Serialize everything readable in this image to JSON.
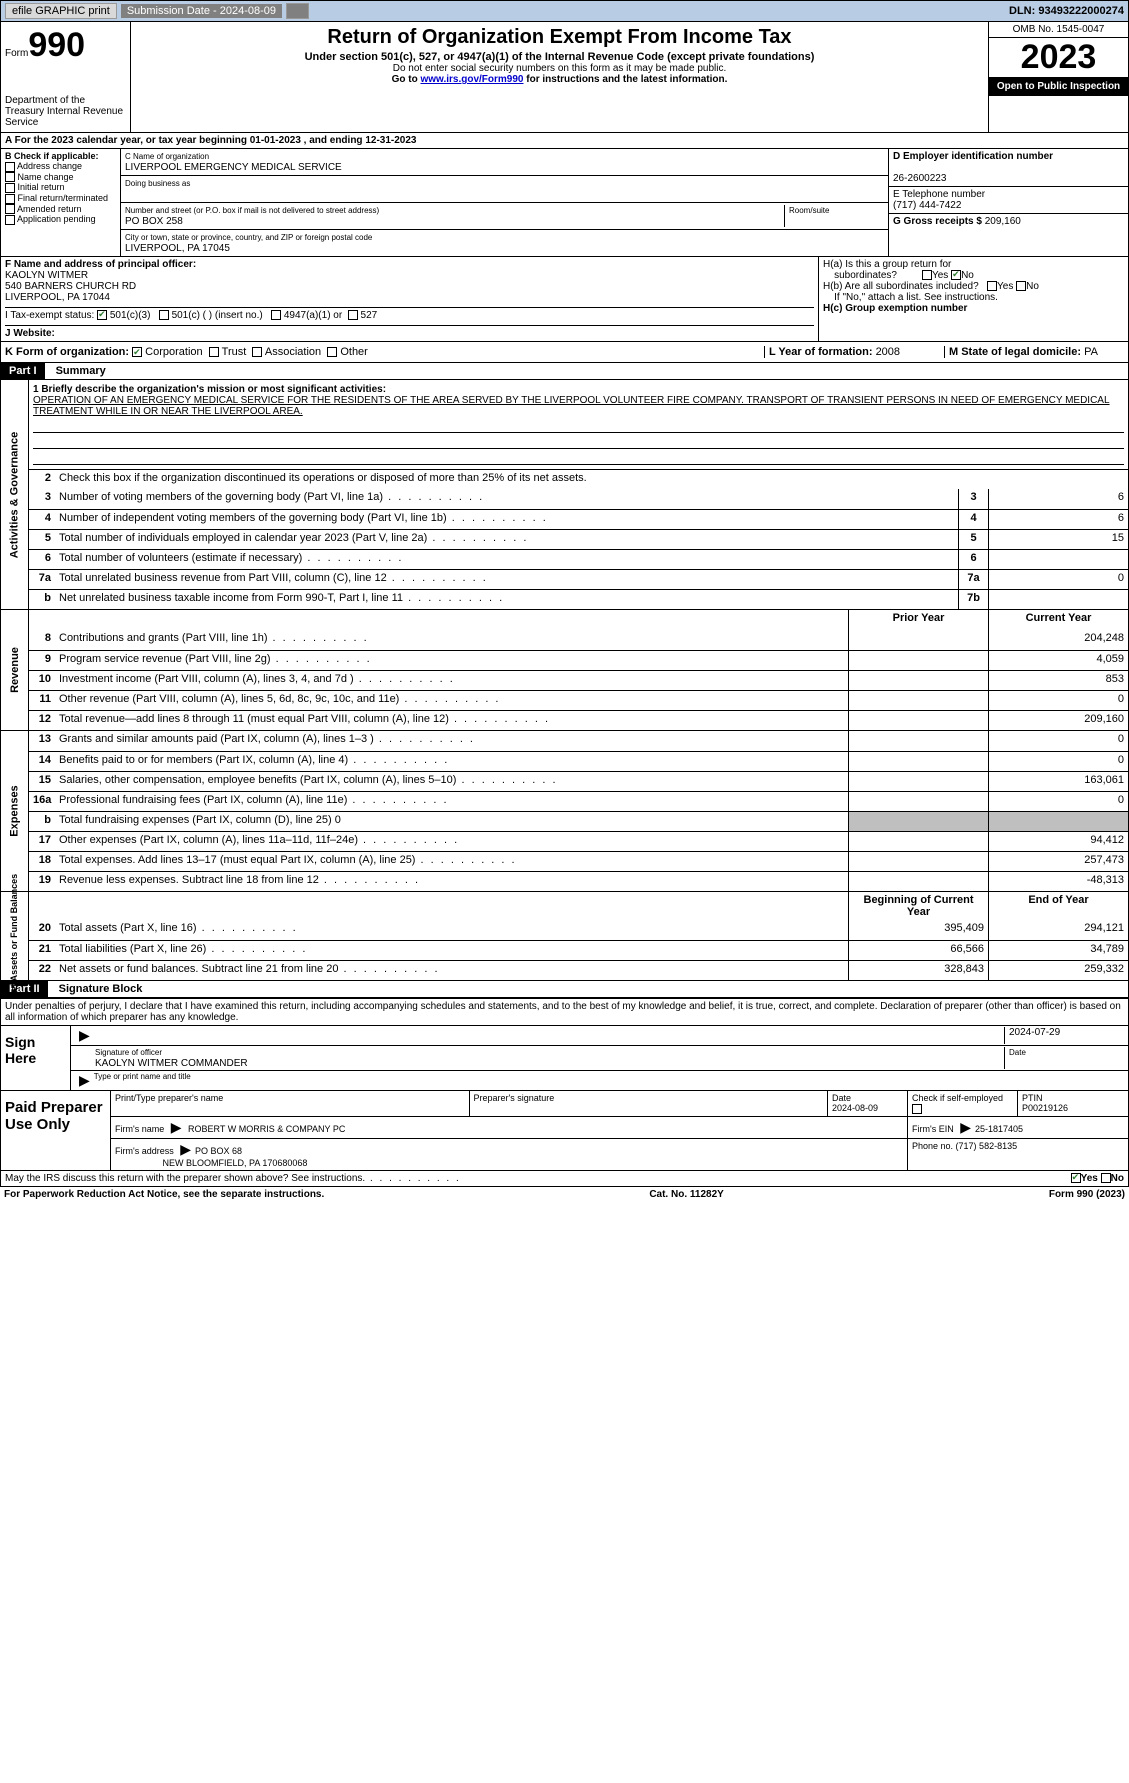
{
  "topbar": {
    "efile": "efile GRAPHIC print",
    "subdate_lbl": "Submission Date - 2024-08-09",
    "dln": "DLN: 93493222000274"
  },
  "header": {
    "form_prefix": "Form",
    "form_no": "990",
    "title": "Return of Organization Exempt From Income Tax",
    "sub": "Under section 501(c), 527, or 4947(a)(1) of the Internal Revenue Code (except private foundations)",
    "note1": "Do not enter social security numbers on this form as it may be made public.",
    "note2_pre": "Go to ",
    "note2_link": "www.irs.gov/Form990",
    "note2_post": " for instructions and the latest information.",
    "dept": "Department of the Treasury\nInternal Revenue Service",
    "omb": "OMB No. 1545-0047",
    "year": "2023",
    "open": "Open to Public Inspection"
  },
  "section_a": "A For the 2023 calendar year, or tax year beginning 01-01-2023   , and ending 12-31-2023",
  "col_b": {
    "hdr": "B Check if applicable:",
    "items": [
      "Address change",
      "Name change",
      "Initial return",
      "Final return/terminated",
      "Amended return",
      "Application pending"
    ]
  },
  "col_c": {
    "name_lbl": "C Name of organization",
    "name": "LIVERPOOL EMERGENCY MEDICAL SERVICE",
    "dba_lbl": "Doing business as",
    "addr_lbl": "Number and street (or P.O. box if mail is not delivered to street address)",
    "addr": "PO BOX 258",
    "room_lbl": "Room/suite",
    "city_lbl": "City or town, state or province, country, and ZIP or foreign postal code",
    "city": "LIVERPOOL, PA  17045"
  },
  "col_de": {
    "ein_lbl": "D Employer identification number",
    "ein": "26-2600223",
    "tel_lbl": "E Telephone number",
    "tel": "(717) 444-7422",
    "gross_lbl": "G Gross receipts $ ",
    "gross": "209,160"
  },
  "officer": {
    "lbl": "F  Name and address of principal officer:",
    "name": "KAOLYN WITMER",
    "addr1": "540 BARNERS CHURCH RD",
    "addr2": "LIVERPOOL, PA  17044"
  },
  "h": {
    "a": "H(a)  Is this a group return for",
    "a2": "subordinates?",
    "b": "H(b)  Are all subordinates included?",
    "b2": "If \"No,\" attach a list. See instructions.",
    "c": "H(c)  Group exemption number  ",
    "yes": "Yes",
    "no": "No"
  },
  "tax_status": {
    "lbl": "I  Tax-exempt status:",
    "c3": "501(c)(3)",
    "c": "501(c) (  ) (insert no.)",
    "a1": "4947(a)(1) or",
    "s527": "527"
  },
  "website_lbl": "J  Website: ",
  "k": {
    "lbl": "K Form of organization:",
    "corp": "Corporation",
    "trust": "Trust",
    "assoc": "Association",
    "other": "Other"
  },
  "l": {
    "lbl": "L Year of formation: ",
    "val": "2008"
  },
  "m": {
    "lbl": "M State of legal domicile: ",
    "val": "PA"
  },
  "part1": {
    "hdr": "Part I",
    "title": "Summary"
  },
  "mission": {
    "line1_lbl": "1  Briefly describe the organization's mission or most significant activities:",
    "text": "OPERATION OF AN EMERGENCY MEDICAL SERVICE FOR THE RESIDENTS OF THE AREA SERVED BY THE LIVERPOOL VOLUNTEER FIRE COMPANY. TRANSPORT OF TRANSIENT PERSONS IN NEED OF EMERGENCY MEDICAL TREATMENT WHILE IN OR NEAR THE LIVERPOOL AREA."
  },
  "gov": {
    "tab": "Activities & Governance",
    "line2": "Check this box      if the organization discontinued its operations or disposed of more than 25% of its net assets.",
    "rows": [
      {
        "n": "3",
        "d": "Number of voting members of the governing body (Part VI, line 1a)",
        "box": "3",
        "v": "6"
      },
      {
        "n": "4",
        "d": "Number of independent voting members of the governing body (Part VI, line 1b)",
        "box": "4",
        "v": "6"
      },
      {
        "n": "5",
        "d": "Total number of individuals employed in calendar year 2023 (Part V, line 2a)",
        "box": "5",
        "v": "15"
      },
      {
        "n": "6",
        "d": "Total number of volunteers (estimate if necessary)",
        "box": "6",
        "v": ""
      },
      {
        "n": "7a",
        "d": "Total unrelated business revenue from Part VIII, column (C), line 12",
        "box": "7a",
        "v": "0"
      },
      {
        "n": "b",
        "d": "Net unrelated business taxable income from Form 990-T, Part I, line 11",
        "box": "7b",
        "v": ""
      }
    ]
  },
  "rev": {
    "tab": "Revenue",
    "hdr_prior": "Prior Year",
    "hdr_cur": "Current Year",
    "rows": [
      {
        "n": "8",
        "d": "Contributions and grants (Part VIII, line 1h)",
        "p": "",
        "c": "204,248"
      },
      {
        "n": "9",
        "d": "Program service revenue (Part VIII, line 2g)",
        "p": "",
        "c": "4,059"
      },
      {
        "n": "10",
        "d": "Investment income (Part VIII, column (A), lines 3, 4, and 7d )",
        "p": "",
        "c": "853"
      },
      {
        "n": "11",
        "d": "Other revenue (Part VIII, column (A), lines 5, 6d, 8c, 9c, 10c, and 11e)",
        "p": "",
        "c": "0"
      },
      {
        "n": "12",
        "d": "Total revenue—add lines 8 through 11 (must equal Part VIII, column (A), line 12)",
        "p": "",
        "c": "209,160"
      }
    ]
  },
  "exp": {
    "tab": "Expenses",
    "rows": [
      {
        "n": "13",
        "d": "Grants and similar amounts paid (Part IX, column (A), lines 1–3 )",
        "p": "",
        "c": "0"
      },
      {
        "n": "14",
        "d": "Benefits paid to or for members (Part IX, column (A), line 4)",
        "p": "",
        "c": "0"
      },
      {
        "n": "15",
        "d": "Salaries, other compensation, employee benefits (Part IX, column (A), lines 5–10)",
        "p": "",
        "c": "163,061"
      },
      {
        "n": "16a",
        "d": "Professional fundraising fees (Part IX, column (A), line 11e)",
        "p": "",
        "c": "0"
      },
      {
        "n": "b",
        "d": "Total fundraising expenses (Part IX, column (D), line 25) 0",
        "grey": true
      },
      {
        "n": "17",
        "d": "Other expenses (Part IX, column (A), lines 11a–11d, 11f–24e)",
        "p": "",
        "c": "94,412"
      },
      {
        "n": "18",
        "d": "Total expenses. Add lines 13–17 (must equal Part IX, column (A), line 25)",
        "p": "",
        "c": "257,473"
      },
      {
        "n": "19",
        "d": "Revenue less expenses. Subtract line 18 from line 12",
        "p": "",
        "c": "-48,313"
      }
    ]
  },
  "net": {
    "tab": "Net Assets or Fund Balances",
    "hdr_beg": "Beginning of Current Year",
    "hdr_end": "End of Year",
    "rows": [
      {
        "n": "20",
        "d": "Total assets (Part X, line 16)",
        "p": "395,409",
        "c": "294,121"
      },
      {
        "n": "21",
        "d": "Total liabilities (Part X, line 26)",
        "p": "66,566",
        "c": "34,789"
      },
      {
        "n": "22",
        "d": "Net assets or fund balances. Subtract line 21 from line 20",
        "p": "328,843",
        "c": "259,332"
      }
    ]
  },
  "part2": {
    "hdr": "Part II",
    "title": "Signature Block"
  },
  "perjury": "Under penalties of perjury, I declare that I have examined this return, including accompanying schedules and statements, and to the best of my knowledge and belief, it is true, correct, and complete. Declaration of preparer (other than officer) is based on all information of which preparer has any knowledge.",
  "sign": {
    "here": "Sign Here",
    "date": "2024-07-29",
    "sig_lbl": "Signature of officer",
    "name": "KAOLYN WITMER  COMMANDER",
    "name_lbl": "Type or print name and title",
    "date_lbl": "Date"
  },
  "paid": {
    "lbl": "Paid Preparer Use Only",
    "pname_lbl": "Print/Type preparer's name",
    "psig_lbl": "Preparer's signature",
    "pdate_lbl": "Date",
    "pdate": "2024-08-09",
    "pcheck_lbl": "Check       if self-employed",
    "ptin_lbl": "PTIN",
    "ptin": "P00219126",
    "firm_lbl": "Firm's name    ",
    "firm": "ROBERT W MORRIS & COMPANY PC",
    "fein_lbl": "Firm's EIN  ",
    "fein": "25-1817405",
    "faddr_lbl": "Firm's address ",
    "faddr1": "PO BOX 68",
    "faddr2": "NEW BLOOMFIELD, PA  170680068",
    "fphone_lbl": "Phone no. ",
    "fphone": "(717) 582-8135"
  },
  "discuss": "May the IRS discuss this return with the preparer shown above? See instructions.",
  "footer": {
    "pra": "For Paperwork Reduction Act Notice, see the separate instructions.",
    "cat": "Cat. No. 11282Y",
    "form": "Form 990 (2023)"
  }
}
